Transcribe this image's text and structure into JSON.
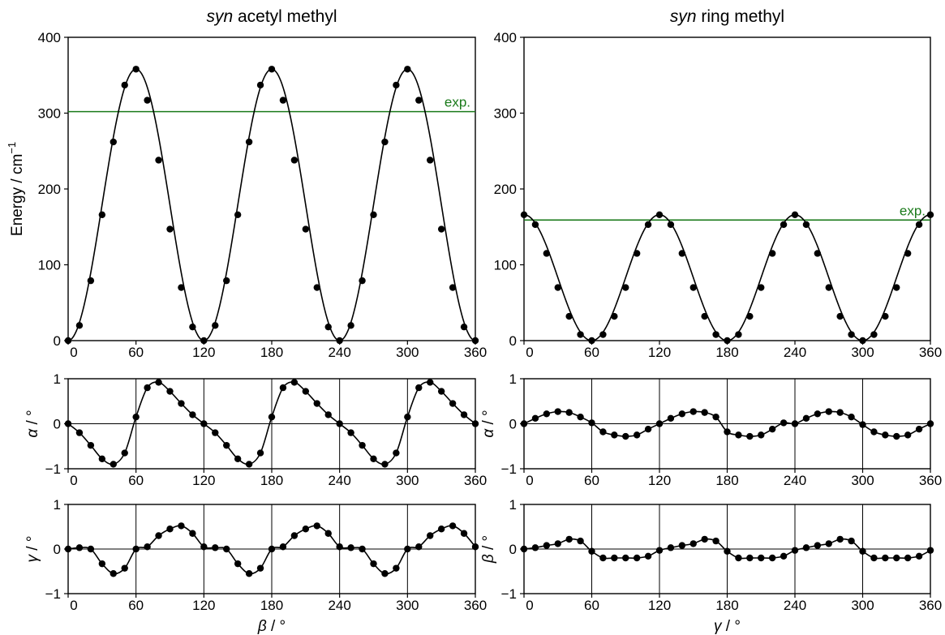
{
  "chart_data": [
    {
      "id": "top-left",
      "type": "line",
      "title_italic": "syn",
      "title_rest": " acetyl methyl",
      "ylabel": "Energy / cm",
      "ylabel_sup": "−1",
      "xlim": [
        0,
        360
      ],
      "ylim": [
        0,
        400
      ],
      "xticks": [
        "0",
        "60",
        "120",
        "180",
        "240",
        "300",
        "360"
      ],
      "yticks": [
        "0",
        "100",
        "200",
        "300",
        "400"
      ],
      "exp_label": "exp.",
      "exp_value": 302,
      "exp_color": "#1a7a1a",
      "curve": {
        "kind": "cos3",
        "amplitude": 179,
        "offset": 179,
        "phase": 0
      },
      "points": {
        "x": [
          0,
          10,
          20,
          30,
          40,
          50,
          60,
          70,
          80,
          90,
          100,
          110,
          120,
          130,
          140,
          150,
          160,
          170,
          180,
          190,
          200,
          210,
          220,
          230,
          240,
          250,
          260,
          270,
          280,
          290,
          300,
          310,
          320,
          330,
          340,
          350,
          360
        ],
        "y": [
          0,
          20,
          79,
          166,
          262,
          337,
          358,
          317,
          238,
          147,
          70,
          18,
          0,
          20,
          79,
          166,
          262,
          337,
          358,
          317,
          238,
          147,
          70,
          18,
          0,
          20,
          79,
          166,
          262,
          337,
          358,
          317,
          238,
          147,
          70,
          18,
          0
        ]
      },
      "vgrid": false,
      "zero_line": false,
      "xlabel": ""
    },
    {
      "id": "top-right",
      "type": "line",
      "title_italic": "syn",
      "title_rest": " ring methyl",
      "ylabel": "",
      "ylabel_sup": "",
      "xlim": [
        0,
        360
      ],
      "ylim": [
        0,
        400
      ],
      "xticks": [
        "0",
        "60",
        "120",
        "180",
        "240",
        "300",
        "360"
      ],
      "yticks": [
        "0",
        "100",
        "200",
        "300",
        "400"
      ],
      "exp_label": "exp.",
      "exp_value": 159,
      "exp_color": "#1a7a1a",
      "curve": {
        "kind": "cos3",
        "amplitude": 83,
        "offset": 83,
        "phase": 0
      },
      "points": {
        "x": [
          0,
          10,
          20,
          30,
          40,
          50,
          60,
          70,
          80,
          90,
          100,
          110,
          120,
          130,
          140,
          150,
          160,
          170,
          180,
          190,
          200,
          210,
          220,
          230,
          240,
          250,
          260,
          270,
          280,
          290,
          300,
          310,
          320,
          330,
          340,
          350,
          360
        ],
        "y": [
          166,
          153,
          115,
          70,
          32,
          8,
          0,
          8,
          32,
          70,
          115,
          153,
          166,
          153,
          115,
          70,
          32,
          8,
          0,
          8,
          32,
          70,
          115,
          153,
          166,
          153,
          115,
          70,
          32,
          8,
          0,
          8,
          32,
          70,
          115,
          153,
          166
        ]
      },
      "vgrid": false,
      "zero_line": false,
      "xlabel": ""
    },
    {
      "id": "mid-left",
      "type": "line",
      "ylabel": "α / °",
      "xlim": [
        0,
        360
      ],
      "ylim": [
        -1,
        1
      ],
      "xticks": [
        "0",
        "60",
        "120",
        "180",
        "240",
        "300",
        "360"
      ],
      "yticks": [
        "−1",
        "0",
        "1"
      ],
      "curve": {
        "kind": "interp"
      },
      "points": {
        "x": [
          0,
          10,
          20,
          30,
          40,
          50,
          60,
          70,
          80,
          90,
          100,
          110,
          120,
          130,
          140,
          150,
          160,
          170,
          180,
          190,
          200,
          210,
          220,
          230,
          240,
          250,
          260,
          270,
          280,
          290,
          300,
          310,
          320,
          330,
          340,
          350,
          360
        ],
        "y": [
          0,
          -0.2,
          -0.48,
          -0.78,
          -0.9,
          -0.65,
          0.15,
          0.8,
          0.92,
          0.72,
          0.45,
          0.2,
          0,
          -0.2,
          -0.48,
          -0.78,
          -0.9,
          -0.65,
          0.15,
          0.8,
          0.92,
          0.72,
          0.45,
          0.2,
          0,
          -0.2,
          -0.48,
          -0.78,
          -0.9,
          -0.65,
          0.15,
          0.8,
          0.92,
          0.72,
          0.45,
          0.2,
          0
        ]
      },
      "vgrid": true,
      "zero_line": true,
      "xlabel": ""
    },
    {
      "id": "mid-right",
      "type": "line",
      "ylabel": "α / °",
      "xlim": [
        0,
        360
      ],
      "ylim": [
        -1,
        1
      ],
      "xticks": [
        "0",
        "60",
        "120",
        "180",
        "240",
        "300",
        "360"
      ],
      "yticks": [
        "−1",
        "0",
        "1"
      ],
      "curve": {
        "kind": "interp"
      },
      "points": {
        "x": [
          0,
          10,
          20,
          30,
          40,
          50,
          60,
          70,
          80,
          90,
          100,
          110,
          120,
          130,
          140,
          150,
          160,
          170,
          180,
          190,
          200,
          210,
          220,
          230,
          240,
          250,
          260,
          270,
          280,
          290,
          300,
          310,
          320,
          330,
          340,
          350,
          360
        ],
        "y": [
          0,
          0.12,
          0.22,
          0.27,
          0.25,
          0.15,
          0.02,
          -0.18,
          -0.25,
          -0.28,
          -0.25,
          -0.12,
          0,
          0.12,
          0.22,
          0.27,
          0.25,
          0.15,
          -0.18,
          -0.25,
          -0.28,
          -0.25,
          -0.12,
          0.02,
          0,
          0.12,
          0.22,
          0.27,
          0.25,
          0.15,
          -0.02,
          -0.18,
          -0.25,
          -0.28,
          -0.25,
          -0.12,
          0
        ]
      },
      "vgrid": true,
      "zero_line": true,
      "xlabel": ""
    },
    {
      "id": "bottom-left",
      "type": "line",
      "ylabel": "γ / °",
      "xlim": [
        0,
        360
      ],
      "ylim": [
        -1,
        1
      ],
      "xticks": [
        "0",
        "60",
        "120",
        "180",
        "240",
        "300",
        "360"
      ],
      "yticks": [
        "−1",
        "0",
        "1"
      ],
      "curve": {
        "kind": "interp"
      },
      "points": {
        "x": [
          0,
          10,
          20,
          30,
          40,
          50,
          60,
          70,
          80,
          90,
          100,
          110,
          120,
          130,
          140,
          150,
          160,
          170,
          180,
          190,
          200,
          210,
          220,
          230,
          240,
          250,
          260,
          270,
          280,
          290,
          300,
          310,
          320,
          330,
          340,
          350,
          360
        ],
        "y": [
          0,
          0.03,
          0,
          -0.33,
          -0.55,
          -0.43,
          0,
          0.05,
          0.3,
          0.45,
          0.52,
          0.35,
          0.05,
          0.03,
          0,
          -0.33,
          -0.55,
          -0.43,
          0,
          0.05,
          0.3,
          0.45,
          0.52,
          0.35,
          0.05,
          0.03,
          0,
          -0.33,
          -0.55,
          -0.43,
          0,
          0.05,
          0.3,
          0.45,
          0.52,
          0.35,
          0.05
        ]
      },
      "vgrid": true,
      "zero_line": true,
      "xlabel": "β / °"
    },
    {
      "id": "bottom-right",
      "type": "line",
      "ylabel": "β / °",
      "xlim": [
        0,
        360
      ],
      "ylim": [
        -1,
        1
      ],
      "xticks": [
        "0",
        "60",
        "120",
        "180",
        "240",
        "300",
        "360"
      ],
      "yticks": [
        "−1",
        "0",
        "1"
      ],
      "curve": {
        "kind": "interp"
      },
      "points": {
        "x": [
          0,
          10,
          20,
          30,
          40,
          50,
          60,
          70,
          80,
          90,
          100,
          110,
          120,
          130,
          140,
          150,
          160,
          170,
          180,
          190,
          200,
          210,
          220,
          230,
          240,
          250,
          260,
          270,
          280,
          290,
          300,
          310,
          320,
          330,
          340,
          350,
          360
        ],
        "y": [
          0,
          0.03,
          0.08,
          0.12,
          0.22,
          0.18,
          -0.05,
          -0.2,
          -0.2,
          -0.2,
          -0.2,
          -0.16,
          -0.03,
          0.03,
          0.08,
          0.12,
          0.22,
          0.18,
          -0.05,
          -0.2,
          -0.2,
          -0.2,
          -0.2,
          -0.16,
          -0.03,
          0.03,
          0.08,
          0.12,
          0.22,
          0.18,
          -0.05,
          -0.2,
          -0.2,
          -0.2,
          -0.2,
          -0.16,
          -0.03
        ]
      },
      "vgrid": true,
      "zero_line": true,
      "xlabel": "γ / °"
    }
  ]
}
